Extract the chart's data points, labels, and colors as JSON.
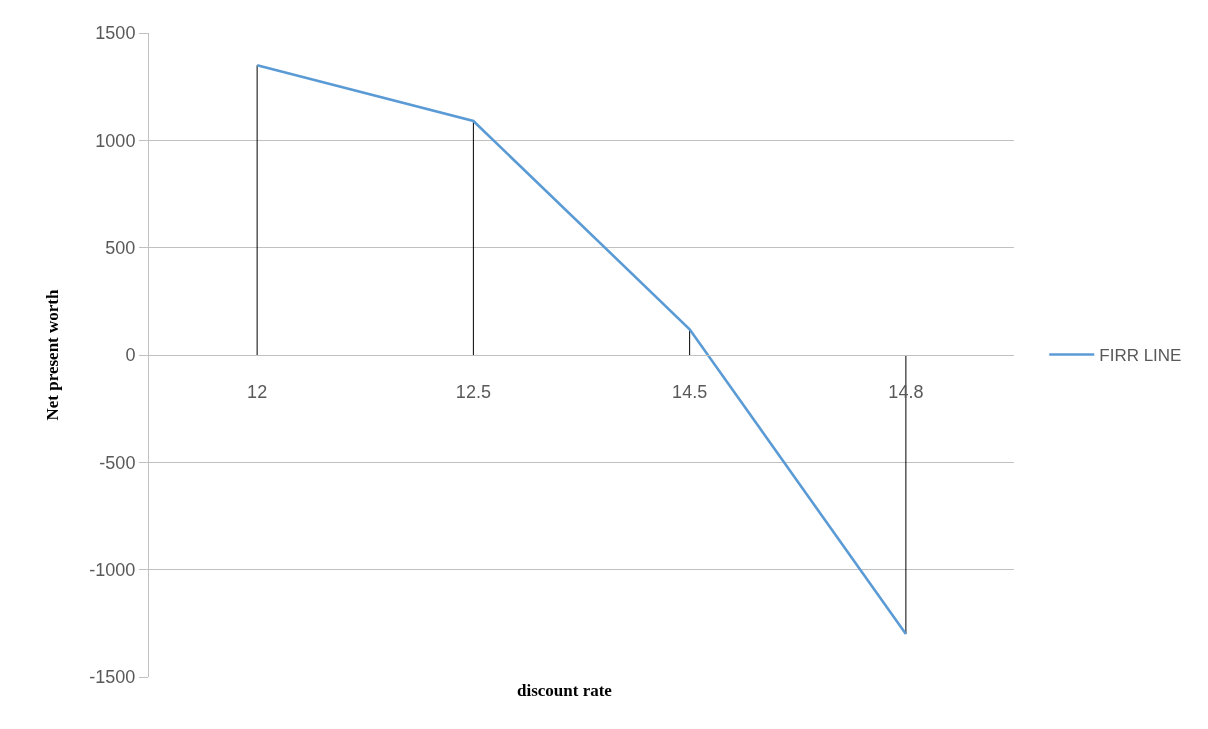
{
  "chart_data": {
    "type": "line",
    "xlabel": "discount rate",
    "ylabel": "Net present worth",
    "categories": [
      "12",
      "12.5",
      "14.5",
      "14.8"
    ],
    "series": [
      {
        "name": "FIRR LINE",
        "color": "#5b9bd5",
        "values": [
          1350,
          1090,
          120,
          -1300
        ],
        "errors": [
          [
            0,
            1350
          ],
          [
            0,
            1090
          ],
          [
            0,
            120
          ],
          [
            -1300,
            0
          ]
        ]
      }
    ],
    "ylim": [
      -1500,
      1500
    ],
    "yticks": [
      -1500,
      -1000,
      -500,
      0,
      500,
      1000,
      1500
    ],
    "grid": "y",
    "legend": "right",
    "marker": "none",
    "line_style": "solid"
  }
}
